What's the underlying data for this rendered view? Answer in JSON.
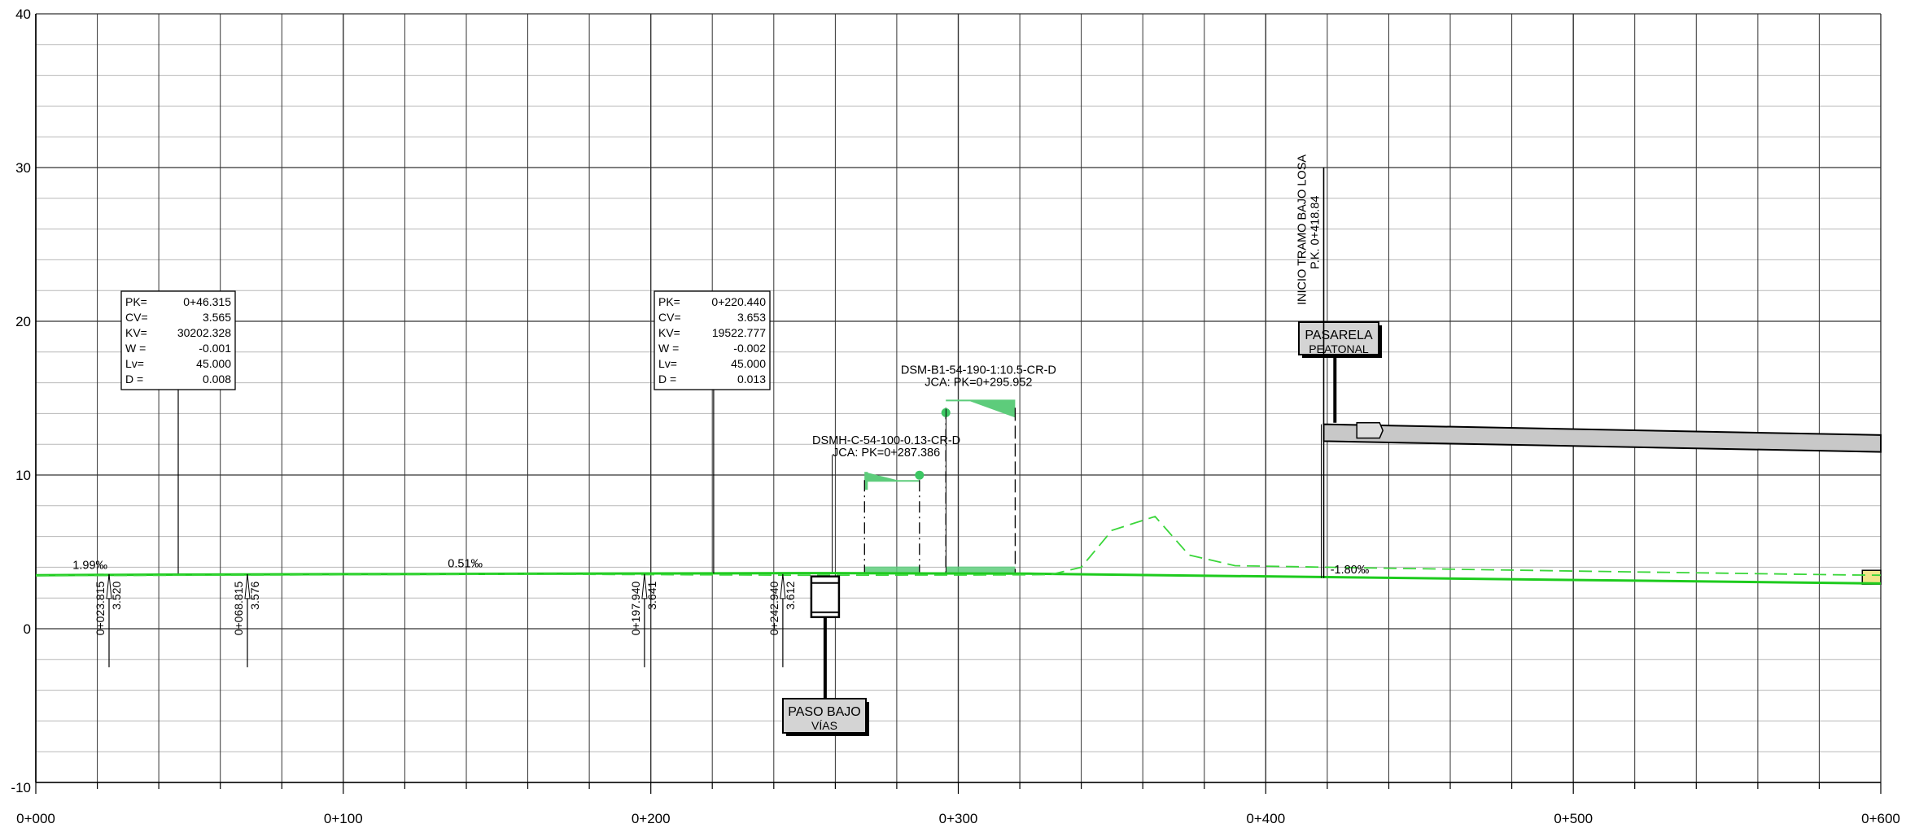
{
  "axes": {
    "y_min": -10,
    "y_max": 40,
    "y_step": 10,
    "y_minor_step": 2,
    "y_labels": [
      "40",
      "30",
      "20",
      "10",
      "0",
      "-10"
    ],
    "x_min": 0,
    "x_max": 600,
    "x_step": 20,
    "x_labels": [
      "0+000",
      "0+100",
      "0+200",
      "0+300",
      "0+400",
      "0+500",
      "0+600"
    ]
  },
  "colors": {
    "grid_major": "#333333",
    "grid_minor": "#b8b8b8",
    "profile": "#1ecb1e",
    "profile_dash": "#3ad63a",
    "fill": "#5dcc7b",
    "deck": "#c8c8c8",
    "label_box": "#d4d4d4"
  },
  "profile_line": [
    [
      0,
      3.48
    ],
    [
      40,
      3.52
    ],
    [
      100,
      3.55
    ],
    [
      250,
      3.62
    ],
    [
      323,
      3.58
    ],
    [
      600,
      2.94
    ]
  ],
  "terrain_line": [
    [
      0,
      3.45
    ],
    [
      160,
      3.55
    ],
    [
      250,
      3.48
    ],
    [
      310,
      3.5
    ],
    [
      330,
      3.52
    ],
    [
      340,
      4.0
    ],
    [
      350,
      6.4
    ],
    [
      364,
      7.3
    ],
    [
      375,
      4.8
    ],
    [
      390,
      4.1
    ],
    [
      420,
      4.0
    ],
    [
      500,
      3.75
    ],
    [
      590,
      3.5
    ],
    [
      600,
      3.48
    ]
  ],
  "grades": [
    {
      "text": "1.99‰",
      "at": 12,
      "elev": 3.9
    },
    {
      "text": "0.51‰",
      "at": 134,
      "elev": 4.0
    },
    {
      "text": "-1.80‰",
      "at": 421,
      "elev": 3.6
    }
  ],
  "station_marks": [
    {
      "pk": "0+023.815",
      "cota": "3.520",
      "at": 23.815
    },
    {
      "pk": "0+068.815",
      "cota": "3.576",
      "at": 68.815
    },
    {
      "pk": "0+197.940",
      "cota": "3.641",
      "at": 197.94
    },
    {
      "pk": "0+242.940",
      "cota": "3.612",
      "at": 242.94
    }
  ],
  "vertical_curves": [
    {
      "at": 46.315,
      "rows": [
        {
          "k": "PK=",
          "v": "0+46.315"
        },
        {
          "k": "CV=",
          "v": "3.565"
        },
        {
          "k": "KV=",
          "v": "30202.328"
        },
        {
          "k": "W =",
          "v": "-0.001"
        },
        {
          "k": "Lv=",
          "v": "45.000"
        },
        {
          "k": "D =",
          "v": "0.008"
        }
      ]
    },
    {
      "at": 220.44,
      "rows": [
        {
          "k": "PK=",
          "v": "0+220.440"
        },
        {
          "k": "CV=",
          "v": "3.653"
        },
        {
          "k": "KV=",
          "v": "19522.777"
        },
        {
          "k": "W =",
          "v": "-0.002"
        },
        {
          "k": "Lv=",
          "v": "45.000"
        },
        {
          "k": "D =",
          "v": "0.013"
        }
      ]
    }
  ],
  "drains": [
    {
      "name": "DSMH-C-54-100-0.13-CR-D",
      "jca": "JCA: PK=0+287.386",
      "from": 269.5,
      "to": 287.386,
      "top": 10.2
    },
    {
      "name": "DSM-B1-54-190-1:10.5-CR-D",
      "jca": "JCA: PK=0+295.952",
      "from": 295.952,
      "to": 318.5,
      "top": 14.9
    }
  ],
  "tags": {
    "underpass": {
      "line1": "PASO BAJO",
      "line2": "VÍAS",
      "at": 256.7
    },
    "footbridge": {
      "line1": "PASARELA",
      "line2": "PEATONAL",
      "at": 422.5
    },
    "slab_start": {
      "line1": "INICIO TRAMO BAJO LOSA",
      "line2": "P.K. 0+418.84",
      "at": 418.84
    }
  },
  "deck": {
    "from": 418.84,
    "to": 600,
    "top_start": 13.3,
    "top_end": 12.6,
    "bottom_start": 12.2,
    "bottom_end": 11.5
  }
}
